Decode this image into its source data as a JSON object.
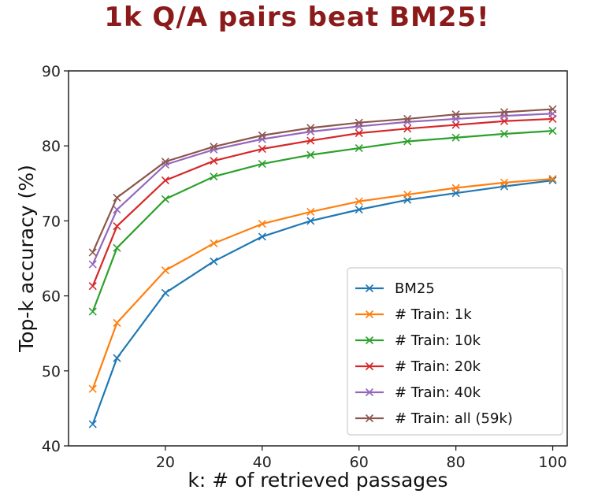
{
  "chart_data": {
    "type": "line",
    "title": "1k Q/A pairs beat BM25!",
    "xlabel": "k: # of retrieved passages",
    "ylabel": "Top-k accuracy (%)",
    "xlim": [
      0,
      103
    ],
    "ylim": [
      40,
      90
    ],
    "x_ticks": [
      20,
      40,
      60,
      80,
      100
    ],
    "y_ticks": [
      40,
      50,
      60,
      70,
      80,
      90
    ],
    "grid": false,
    "legend_position": "lower-right",
    "x": [
      5,
      10,
      20,
      30,
      40,
      50,
      60,
      70,
      80,
      90,
      100
    ],
    "series": [
      {
        "name": "BM25",
        "color": "#1f77b4",
        "marker": "x",
        "values": [
          42.9,
          51.7,
          60.4,
          64.6,
          67.9,
          70.0,
          71.5,
          72.8,
          73.7,
          74.6,
          75.4
        ]
      },
      {
        "name": "# Train: 1k",
        "color": "#ff7f0e",
        "marker": "x",
        "values": [
          47.6,
          56.4,
          63.4,
          67.0,
          69.6,
          71.2,
          72.6,
          73.5,
          74.4,
          75.1,
          75.6
        ]
      },
      {
        "name": "# Train: 10k",
        "color": "#2ca02c",
        "marker": "x",
        "values": [
          57.9,
          66.4,
          72.9,
          75.9,
          77.6,
          78.8,
          79.7,
          80.6,
          81.1,
          81.6,
          82.0
        ]
      },
      {
        "name": "# Train: 20k",
        "color": "#d62728",
        "marker": "x",
        "values": [
          61.3,
          69.3,
          75.4,
          78.0,
          79.6,
          80.7,
          81.7,
          82.3,
          82.8,
          83.3,
          83.6
        ]
      },
      {
        "name": "# Train: 40k",
        "color": "#9467bd",
        "marker": "x",
        "values": [
          64.2,
          71.5,
          77.5,
          79.5,
          80.9,
          81.9,
          82.6,
          83.2,
          83.6,
          84.0,
          84.3
        ]
      },
      {
        "name": "# Train: all (59k)",
        "color": "#8c564b",
        "marker": "x",
        "values": [
          65.8,
          73.1,
          77.9,
          79.9,
          81.4,
          82.4,
          83.1,
          83.6,
          84.2,
          84.5,
          84.9
        ]
      }
    ]
  }
}
